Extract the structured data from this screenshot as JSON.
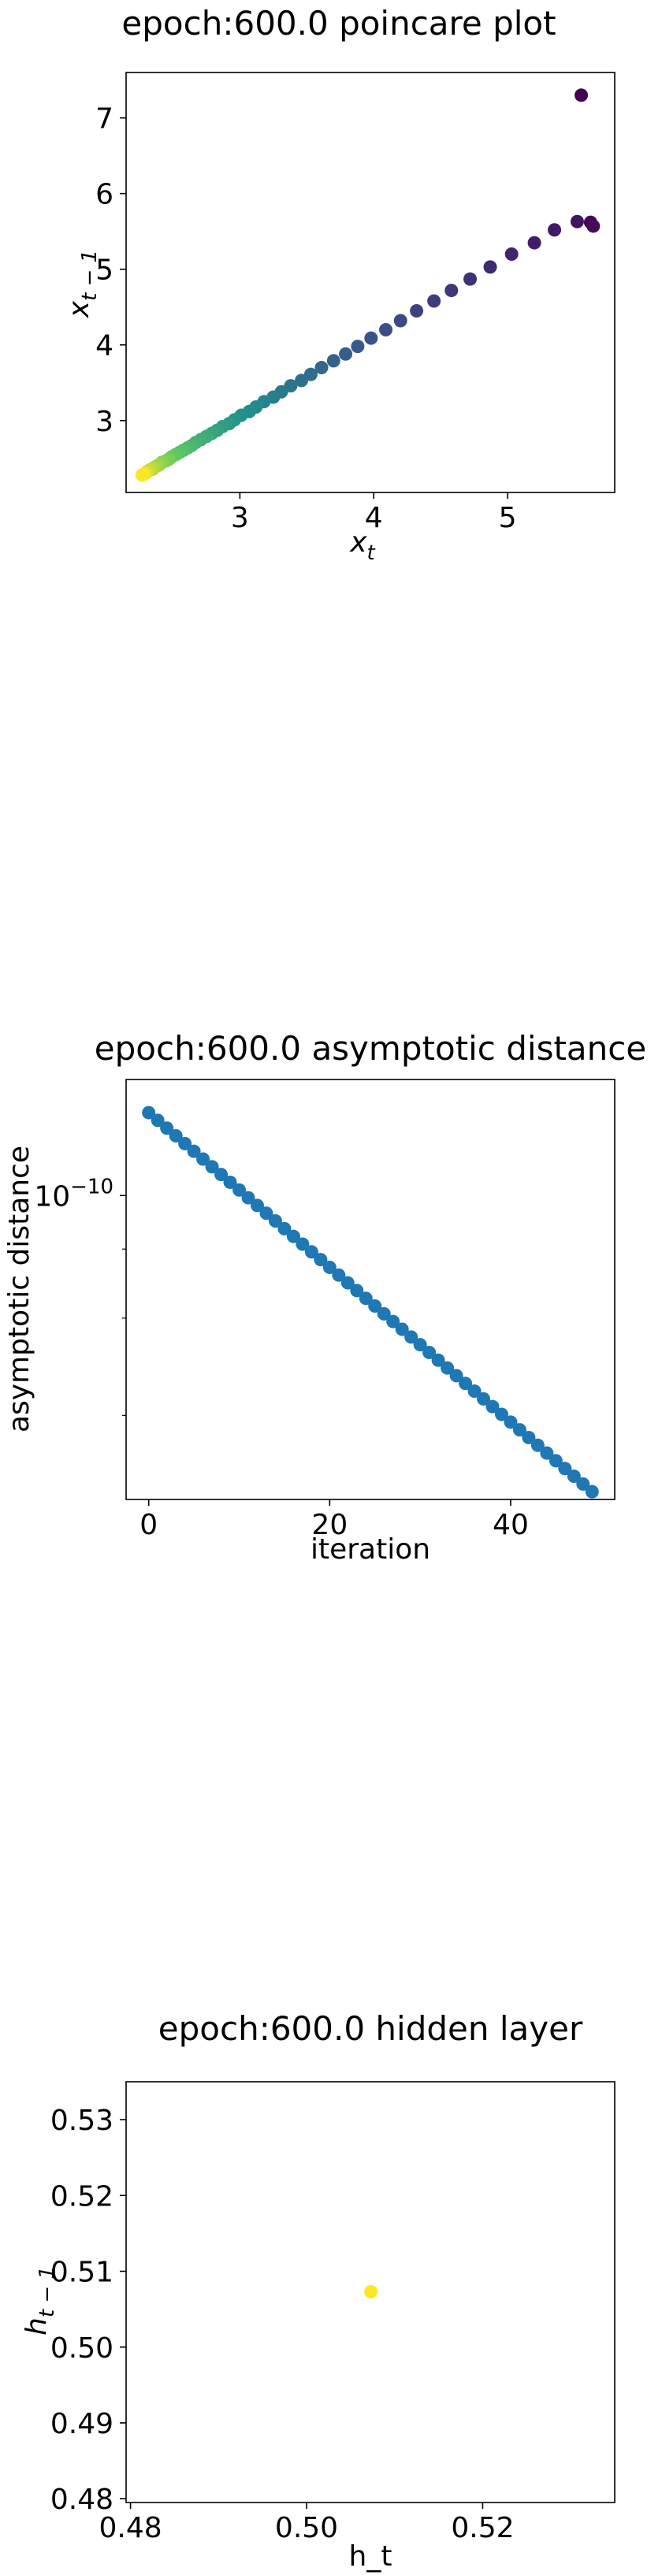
{
  "chart_data": [
    {
      "type": "scatter",
      "title": "epoch:600.0 poincare plot",
      "xlabel_base": "x",
      "xlabel_sub": "t",
      "ylabel_base": "x",
      "ylabel_sub": "t − 1",
      "xlim": [
        2.15,
        5.8
      ],
      "ylim": [
        2.05,
        7.6
      ],
      "xticks": [
        3,
        4,
        5
      ],
      "xtick_labels": [
        "3",
        "4",
        "5"
      ],
      "yticks": [
        3,
        4,
        5,
        6,
        7
      ],
      "ytick_labels": [
        "3",
        "4",
        "5",
        "6",
        "7"
      ],
      "colormap": "viridis",
      "colormap_stops": [
        "#440154",
        "#3b528b",
        "#21918c",
        "#5ec962",
        "#fde725"
      ],
      "grid": false,
      "x": [
        5.55,
        5.62,
        5.64,
        5.52,
        5.35,
        5.2,
        5.03,
        4.87,
        4.72,
        4.58,
        4.45,
        4.32,
        4.2,
        4.09,
        3.98,
        3.88,
        3.79,
        3.7,
        3.61,
        3.53,
        3.46,
        3.38,
        3.31,
        3.25,
        3.18,
        3.12,
        3.07,
        3.01,
        2.96,
        2.92,
        2.87,
        2.83,
        2.79,
        2.75,
        2.71,
        2.67,
        2.64,
        2.61,
        2.58,
        2.55,
        2.52,
        2.49,
        2.47,
        2.45,
        2.42,
        2.4,
        2.38,
        2.36,
        2.35,
        2.33,
        2.31,
        2.3,
        2.29,
        2.28,
        2.27
      ],
      "y": [
        7.3,
        5.62,
        5.57,
        5.63,
        5.52,
        5.35,
        5.2,
        5.03,
        4.87,
        4.72,
        4.58,
        4.45,
        4.32,
        4.2,
        4.09,
        3.98,
        3.88,
        3.79,
        3.7,
        3.61,
        3.53,
        3.46,
        3.38,
        3.31,
        3.25,
        3.18,
        3.12,
        3.07,
        3.01,
        2.96,
        2.92,
        2.87,
        2.83,
        2.79,
        2.75,
        2.71,
        2.67,
        2.64,
        2.61,
        2.58,
        2.55,
        2.52,
        2.49,
        2.47,
        2.45,
        2.42,
        2.4,
        2.38,
        2.36,
        2.35,
        2.33,
        2.31,
        2.3,
        2.29,
        2.28
      ]
    },
    {
      "type": "scatter",
      "title": "epoch:600.0 asymptotic distance",
      "xlabel": "iteration",
      "ylabel": "asymptotic distance",
      "yscale": "log",
      "xlim": [
        -2.5,
        51.5
      ],
      "ylim_log10": [
        -10.55,
        -9.79
      ],
      "xticks": [
        0,
        20,
        40
      ],
      "xtick_labels": [
        "0",
        "20",
        "40"
      ],
      "ytick_major_exponents": [
        -10
      ],
      "ytick_label_base": "10",
      "ytick_label_exponents": [
        "−10"
      ],
      "ytick_minor_log10": [
        -10.0969,
        -10.2218,
        -10.3979
      ],
      "color": "#1f77b4",
      "grid": false,
      "x": [
        0,
        1,
        2,
        3,
        4,
        5,
        6,
        7,
        8,
        9,
        10,
        11,
        12,
        13,
        14,
        15,
        16,
        17,
        18,
        19,
        20,
        21,
        22,
        23,
        24,
        25,
        26,
        27,
        28,
        29,
        30,
        31,
        32,
        33,
        34,
        35,
        36,
        37,
        38,
        39,
        40,
        41,
        42,
        43,
        44,
        45,
        46,
        47,
        48,
        49
      ],
      "y_log10": [
        -9.85,
        -9.864,
        -9.878,
        -9.892,
        -9.906,
        -9.92,
        -9.934,
        -9.948,
        -9.962,
        -9.976,
        -9.99,
        -10.004,
        -10.018,
        -10.032,
        -10.046,
        -10.06,
        -10.074,
        -10.088,
        -10.102,
        -10.116,
        -10.13,
        -10.144,
        -10.158,
        -10.172,
        -10.186,
        -10.2,
        -10.214,
        -10.228,
        -10.242,
        -10.256,
        -10.27,
        -10.284,
        -10.298,
        -10.312,
        -10.326,
        -10.34,
        -10.354,
        -10.368,
        -10.382,
        -10.396,
        -10.41,
        -10.424,
        -10.438,
        -10.452,
        -10.466,
        -10.48,
        -10.494,
        -10.508,
        -10.522,
        -10.536
      ]
    },
    {
      "type": "scatter",
      "title": "epoch:600.0 hidden layer",
      "xlabel": "h_t",
      "ylabel_base": "h",
      "ylabel_sub": "t − 1",
      "xlim": [
        0.4795,
        0.535
      ],
      "ylim": [
        0.4795,
        0.535
      ],
      "xticks": [
        0.48,
        0.5,
        0.52
      ],
      "xtick_labels": [
        "0.48",
        "0.50",
        "0.52"
      ],
      "yticks": [
        0.48,
        0.49,
        0.5,
        0.51,
        0.52,
        0.53
      ],
      "ytick_labels": [
        "0.48",
        "0.49",
        "0.50",
        "0.51",
        "0.52",
        "0.53"
      ],
      "color": "#fde725",
      "grid": false,
      "x": [
        0.5073
      ],
      "y": [
        0.5073
      ]
    }
  ]
}
